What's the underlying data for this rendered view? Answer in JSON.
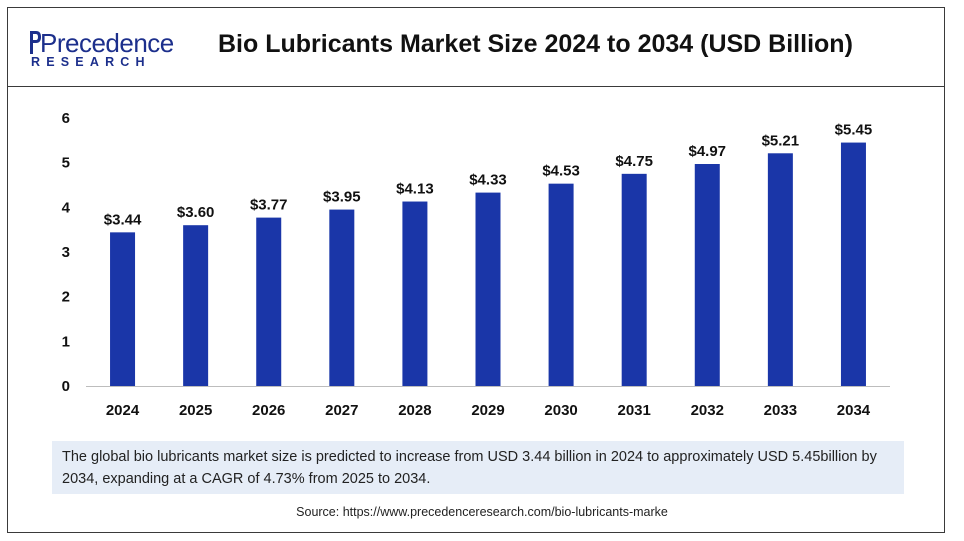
{
  "brand": {
    "name": "Precedence",
    "sub": "RESEARCH",
    "color": "#1c2f8c"
  },
  "title": "Bio Lubricants Market Size 2024 to 2034 (USD Billion)",
  "chart_data": {
    "type": "bar",
    "title": "Bio Lubricants Market Size 2024 to 2034 (USD Billion)",
    "categories": [
      "2024",
      "2025",
      "2026",
      "2027",
      "2028",
      "2029",
      "2030",
      "2031",
      "2032",
      "2033",
      "2034"
    ],
    "values": [
      3.44,
      3.6,
      3.77,
      3.95,
      4.13,
      4.33,
      4.53,
      4.75,
      4.97,
      5.21,
      5.45
    ],
    "value_labels": [
      "$3.44",
      "$3.60",
      "$3.77",
      "$3.95",
      "$4.13",
      "$4.33",
      "$4.53",
      "$4.75",
      "$4.97",
      "$5.21",
      "$5.45"
    ],
    "yticks": [
      "0",
      "1",
      "2",
      "3",
      "4",
      "5",
      "6"
    ],
    "ylim": [
      0,
      6
    ],
    "xlabel": "",
    "ylabel": "",
    "grid": false,
    "bar_color": "#1a36a8"
  },
  "note": "The global bio lubricants market size is predicted to increase from USD 3.44 billion in 2024 to approximately USD 5.45billion by 2034, expanding at a CAGR of 4.73% from 2025 to 2034.",
  "source": "Source: https://www.precedenceresearch.com/bio-lubricants-marke"
}
